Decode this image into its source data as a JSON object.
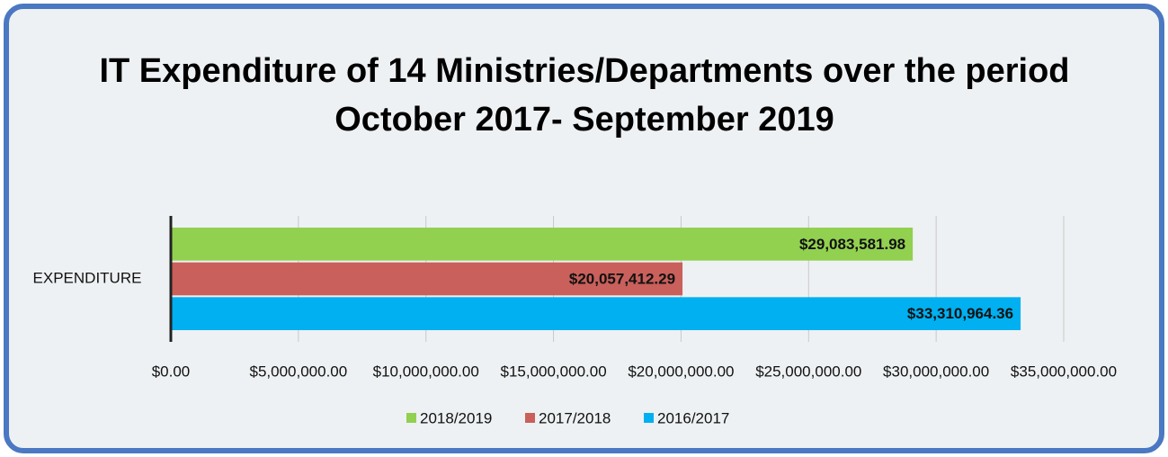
{
  "chart_data": {
    "type": "bar",
    "orientation": "horizontal",
    "title": "IT Expenditure of 14 Ministries/Departments over the period\nOctober 2017- September 2019",
    "categories": [
      "EXPENDITURE"
    ],
    "series": [
      {
        "name": "2018/2019",
        "color": "#92d050",
        "values": [
          29083581.98
        ],
        "value_labels": [
          "$29,083,581.98"
        ]
      },
      {
        "name": "2017/2018",
        "color": "#c9605b",
        "values": [
          20057412.29
        ],
        "value_labels": [
          "$20,057,412.29"
        ]
      },
      {
        "name": "2016/2017",
        "color": "#00b0f0",
        "values": [
          33310964.36
        ],
        "value_labels": [
          "$33,310,964.36"
        ]
      }
    ],
    "xlim": [
      0,
      35000000
    ],
    "xticks": [
      {
        "value": 0,
        "label": "$0.00"
      },
      {
        "value": 5000000,
        "label": "$5,000,000.00"
      },
      {
        "value": 10000000,
        "label": "$10,000,000.00"
      },
      {
        "value": 15000000,
        "label": "$15,000,000.00"
      },
      {
        "value": 20000000,
        "label": "$20,000,000.00"
      },
      {
        "value": 25000000,
        "label": "$25,000,000.00"
      },
      {
        "value": 30000000,
        "label": "$30,000,000.00"
      },
      {
        "value": 35000000,
        "label": "$35,000,000.00"
      }
    ],
    "grid": true,
    "legend": "bottom"
  }
}
